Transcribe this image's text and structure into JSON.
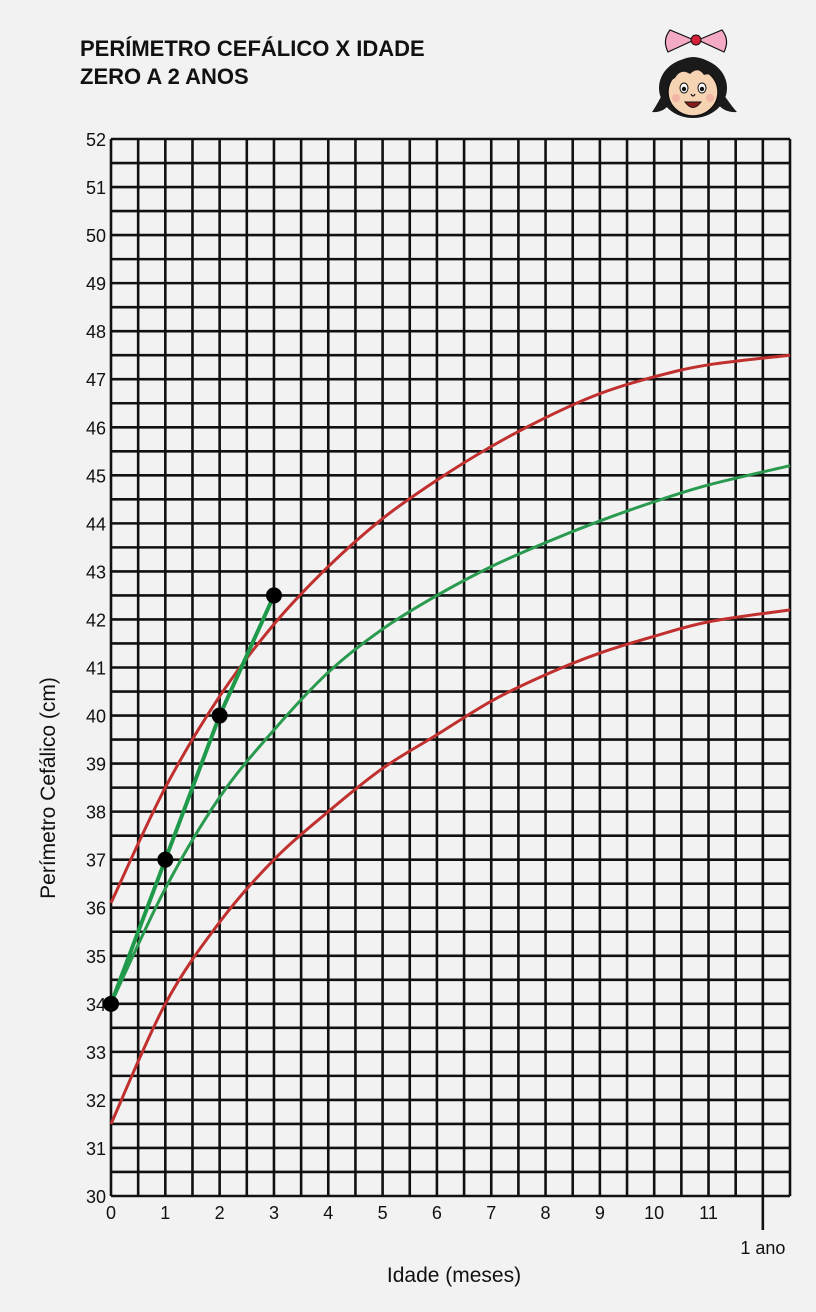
{
  "title": {
    "line1": "PERÍMETRO CEFÁLICO X IDADE",
    "line2": "ZERO A 2 ANOS"
  },
  "chart_data": {
    "type": "line",
    "xlabel": "Idade (meses)",
    "ylabel": "Perímetro Cefálico (cm)",
    "x_ticks": [
      "0",
      "1",
      "2",
      "3",
      "4",
      "5",
      "6",
      "7",
      "8",
      "9",
      "10",
      "11"
    ],
    "x_end_label": "1 ano",
    "y_ticks": [
      "30",
      "31",
      "32",
      "33",
      "34",
      "35",
      "36",
      "37",
      "38",
      "39",
      "40",
      "41",
      "42",
      "43",
      "44",
      "45",
      "46",
      "47",
      "48",
      "49",
      "50",
      "51",
      "52"
    ],
    "xlim": [
      0,
      12.5
    ],
    "ylim": [
      30,
      52
    ],
    "grid": true,
    "series": [
      {
        "color": "#c0302e",
        "x": [
          0,
          1,
          2,
          3,
          4,
          5,
          6,
          7,
          8,
          9,
          10,
          11,
          12.5
        ],
        "y": [
          36.1,
          38.5,
          40.4,
          41.9,
          43.1,
          44.1,
          44.9,
          45.6,
          46.2,
          46.7,
          47.05,
          47.3,
          47.5
        ]
      },
      {
        "color": "#2a9a4f",
        "x": [
          0,
          1,
          2,
          3,
          4,
          5,
          6,
          7,
          8,
          9,
          10,
          11,
          12.5
        ],
        "y": [
          34.0,
          36.4,
          38.3,
          39.7,
          40.9,
          41.8,
          42.5,
          43.1,
          43.6,
          44.05,
          44.45,
          44.8,
          45.2
        ]
      },
      {
        "color": "#c0302e",
        "x": [
          0,
          1,
          2,
          3,
          4,
          5,
          6,
          7,
          8,
          9,
          10,
          11,
          12.5
        ],
        "y": [
          31.5,
          34.0,
          35.7,
          37.0,
          38.0,
          38.9,
          39.6,
          40.3,
          40.85,
          41.3,
          41.65,
          41.95,
          42.2
        ]
      }
    ],
    "measurements": {
      "color": "#1f9a4a",
      "x": [
        0,
        1,
        2,
        3
      ],
      "y": [
        34,
        37,
        40,
        42.5
      ]
    }
  },
  "mascot": {
    "name": "girl-face-icon"
  }
}
